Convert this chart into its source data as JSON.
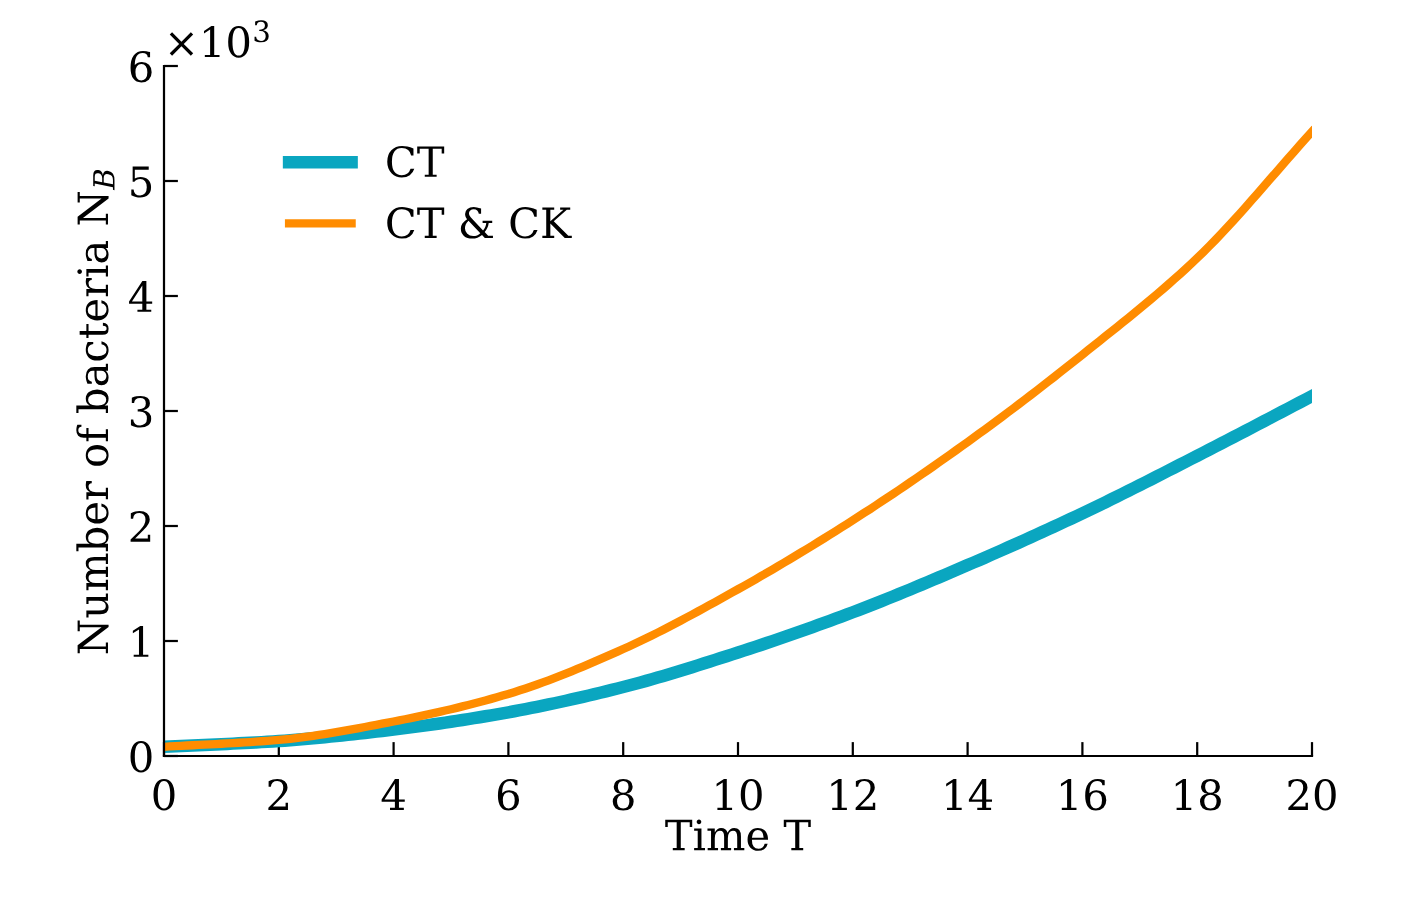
{
  "chart_data": {
    "type": "line",
    "xlabel": "Time T",
    "ylabel": "Number of bacteria N$_{B}$",
    "annotations": [
      "×10$^{3}$"
    ],
    "x": [
      0,
      2,
      4,
      6,
      8,
      10,
      12,
      14,
      16,
      18,
      20
    ],
    "series": [
      {
        "name": "CT",
        "color": "#0aa6c0",
        "values": [
          0.08,
          0.13,
          0.23,
          0.38,
          0.6,
          0.9,
          1.25,
          1.66,
          2.11,
          2.61,
          3.13
        ]
      },
      {
        "name": "CT & CK",
        "color": "#ff8c00",
        "values": [
          0.08,
          0.14,
          0.3,
          0.54,
          0.93,
          1.45,
          2.05,
          2.73,
          3.49,
          4.33,
          5.43
        ]
      }
    ],
    "xlim": [
      0,
      20
    ],
    "xticks": [
      0,
      2,
      4,
      6,
      8,
      10,
      12,
      14,
      16,
      18,
      20
    ],
    "ylim": [
      0,
      6
    ],
    "yticks": [
      0,
      1,
      2,
      3,
      4,
      5,
      6
    ],
    "grid": false,
    "legend": "top left",
    "marker": "none",
    "line_style": "solid"
  }
}
